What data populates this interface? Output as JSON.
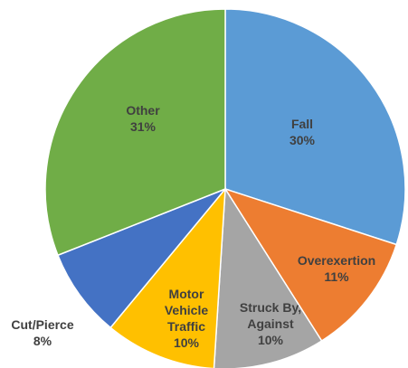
{
  "chart_data": {
    "type": "pie",
    "categories": [
      "Fall",
      "Overexertion",
      "Struck By, Against",
      "Motor Vehicle Traffic",
      "Cut/Pierce",
      "Other"
    ],
    "values": [
      30,
      11,
      10,
      10,
      8,
      31
    ],
    "value_labels": [
      "30%",
      "11%",
      "10%",
      "10%",
      "8%",
      "31%"
    ],
    "colors": [
      "#5b9bd5",
      "#ed7d31",
      "#a5a5a5",
      "#ffc000",
      "#4472c4",
      "#70ad47"
    ]
  }
}
